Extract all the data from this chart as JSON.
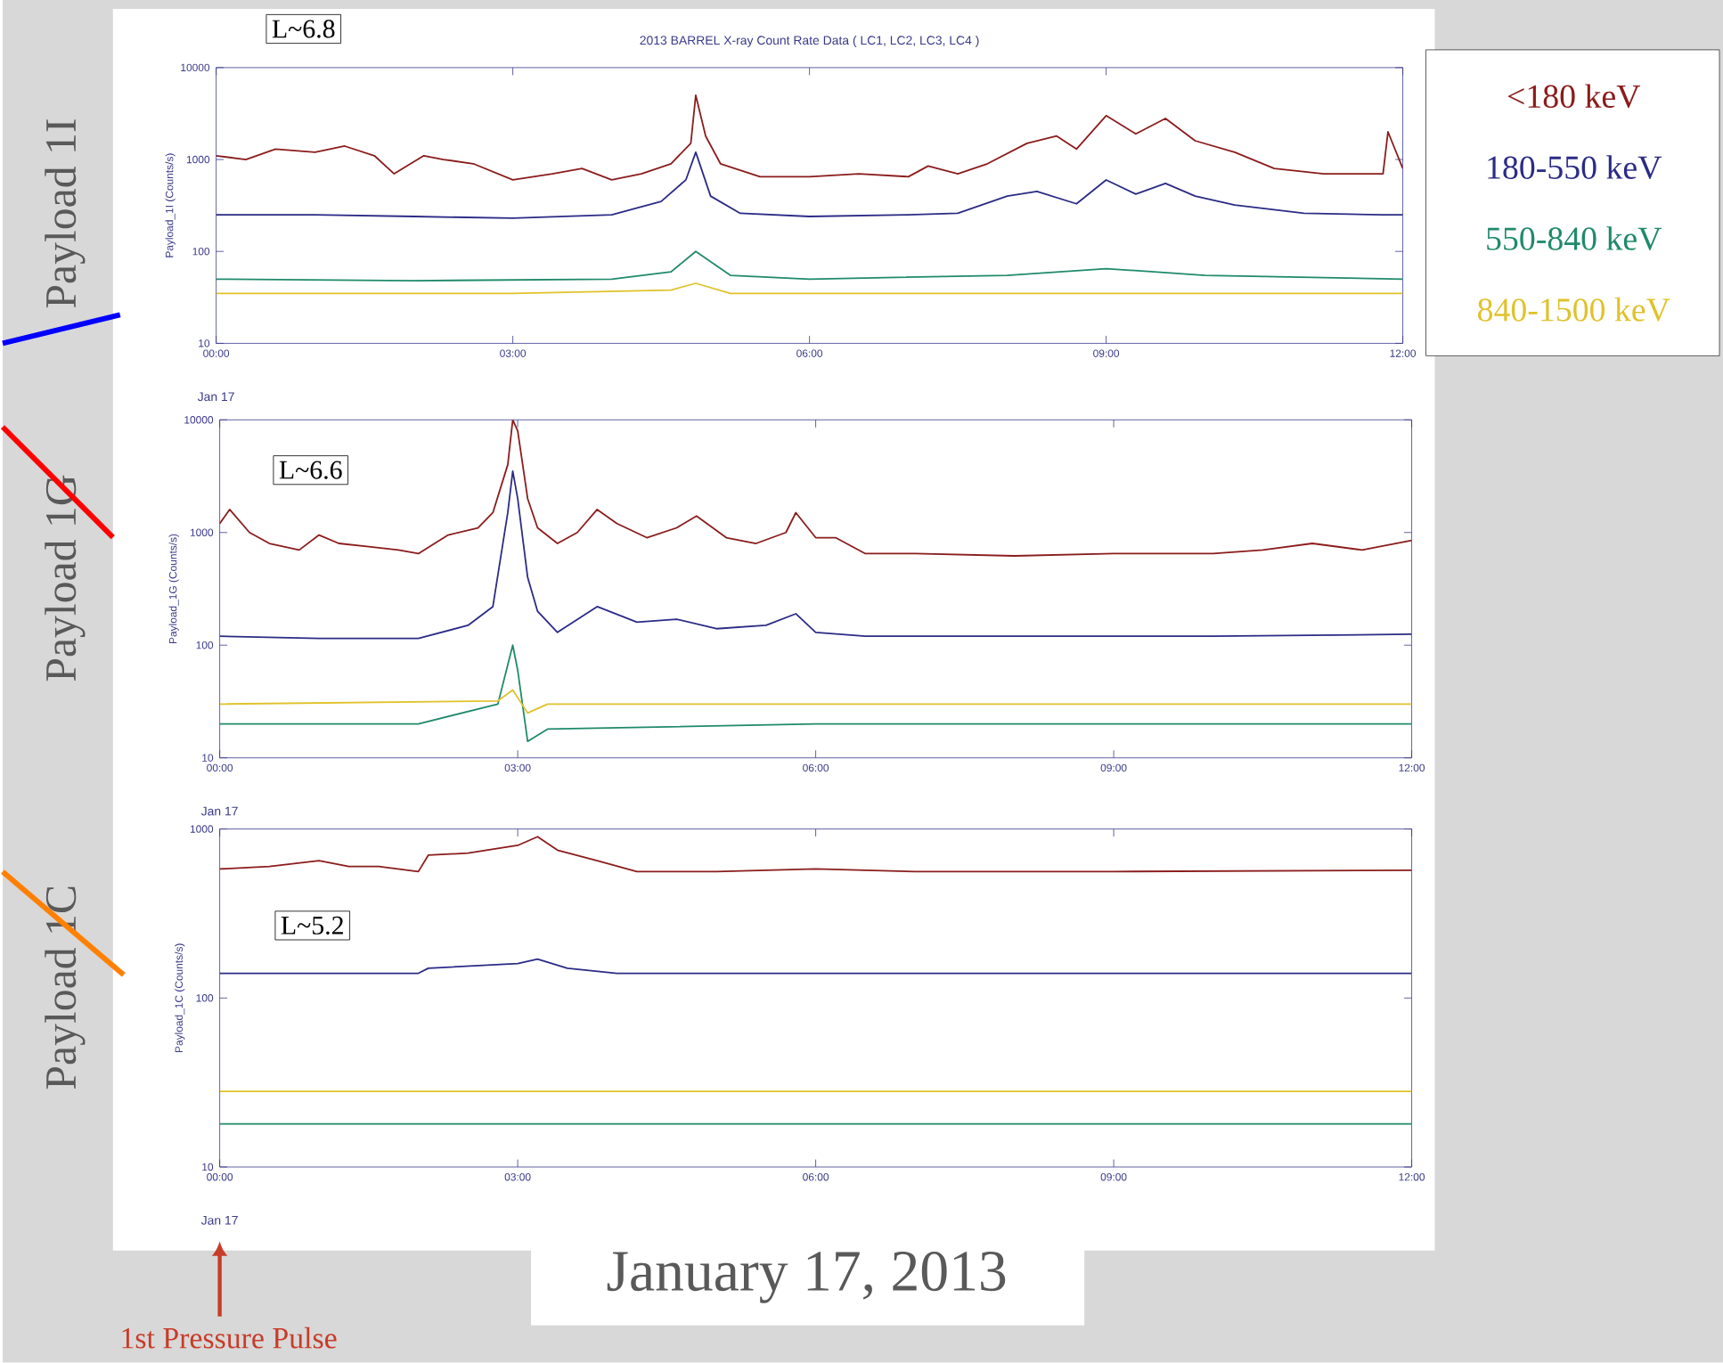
{
  "chart_data": [
    {
      "type": "line",
      "title": "2013 BARREL X-ray Count Rate Data      ( LC1, LC2, LC3, LC4 )",
      "ylabel": "Payload_1I (Counts/s)",
      "log": true,
      "legend": "right",
      "xlim": [
        0,
        12
      ],
      "xticks": [
        {
          "value": 0,
          "label": "00:00"
        },
        {
          "value": 3,
          "label": "03:00"
        },
        {
          "value": 6,
          "label": "06:00"
        },
        {
          "value": 9,
          "label": "09:00"
        },
        {
          "value": 12,
          "label": "12:00"
        }
      ],
      "ylim": [
        10,
        10000
      ],
      "yticks": [
        10,
        100,
        1000,
        10000
      ],
      "annotations": [
        "L~6.8",
        "Payload 1I",
        "Jan 17"
      ],
      "series": [
        {
          "name": "<180 keV",
          "color": "#8b1c1c",
          "x": [
            0,
            0.3,
            0.6,
            1.0,
            1.3,
            1.6,
            1.8,
            2.1,
            2.3,
            2.6,
            3.0,
            3.4,
            3.7,
            4.0,
            4.3,
            4.6,
            4.8,
            4.85,
            4.95,
            5.1,
            5.5,
            6.0,
            6.5,
            7.0,
            7.2,
            7.5,
            7.8,
            8.2,
            8.5,
            8.7,
            9.0,
            9.3,
            9.6,
            9.9,
            10.3,
            10.7,
            11.2,
            11.6,
            11.8,
            11.85,
            12.0
          ],
          "values": [
            1100,
            1000,
            1300,
            1200,
            1400,
            1100,
            700,
            1100,
            1000,
            900,
            600,
            700,
            800,
            600,
            700,
            900,
            1500,
            5000,
            1800,
            900,
            650,
            650,
            700,
            650,
            850,
            700,
            900,
            1500,
            1800,
            1300,
            3000,
            1900,
            2800,
            1600,
            1200,
            800,
            700,
            700,
            700,
            2000,
            800
          ]
        },
        {
          "name": "180-550 keV",
          "color": "#2b2b86",
          "x": [
            0,
            1,
            2,
            3,
            4,
            4.5,
            4.75,
            4.85,
            5.0,
            5.3,
            6,
            7,
            7.5,
            8.0,
            8.3,
            8.7,
            9.0,
            9.3,
            9.6,
            9.9,
            10.3,
            11,
            11.8,
            12
          ],
          "values": [
            250,
            250,
            240,
            230,
            250,
            350,
            600,
            1200,
            400,
            260,
            240,
            250,
            260,
            400,
            450,
            330,
            600,
            420,
            550,
            400,
            320,
            260,
            250,
            250
          ]
        },
        {
          "name": "550-840 keV",
          "color": "#1f8a6a",
          "x": [
            0,
            2,
            4,
            4.6,
            4.85,
            5.2,
            6,
            8,
            9,
            10,
            12
          ],
          "values": [
            50,
            48,
            50,
            60,
            100,
            55,
            50,
            55,
            65,
            55,
            50
          ]
        },
        {
          "name": "840-1500 keV",
          "color": "#e0c22a",
          "x": [
            0,
            3,
            4.6,
            4.85,
            5.2,
            8,
            12
          ],
          "values": [
            35,
            35,
            38,
            45,
            35,
            35,
            35
          ]
        }
      ]
    },
    {
      "type": "line",
      "ylabel": "Payload_1G (Counts/s)",
      "log": true,
      "xlim": [
        0,
        12
      ],
      "xticks": [
        {
          "value": 0,
          "label": "00:00"
        },
        {
          "value": 3,
          "label": "03:00"
        },
        {
          "value": 6,
          "label": "06:00"
        },
        {
          "value": 9,
          "label": "09:00"
        },
        {
          "value": 12,
          "label": "12:00"
        }
      ],
      "ylim": [
        10,
        10000
      ],
      "yticks": [
        10,
        100,
        1000,
        10000
      ],
      "annotations": [
        "L~6.6",
        "Payload 1G",
        "Jan 17"
      ],
      "series": [
        {
          "color": "#8b1c1c",
          "x": [
            0,
            0.1,
            0.3,
            0.5,
            0.8,
            1.0,
            1.2,
            1.5,
            1.8,
            2.0,
            2.3,
            2.6,
            2.75,
            2.9,
            2.95,
            3.0,
            3.1,
            3.2,
            3.4,
            3.6,
            3.8,
            4.0,
            4.3,
            4.6,
            4.8,
            5.1,
            5.4,
            5.7,
            5.8,
            6.0,
            6.2,
            6.5,
            7,
            8,
            9,
            10,
            10.5,
            11,
            11.5,
            12
          ],
          "values": [
            1200,
            1600,
            1000,
            800,
            700,
            950,
            800,
            750,
            700,
            650,
            950,
            1100,
            1500,
            4000,
            10000,
            8000,
            2000,
            1100,
            800,
            1000,
            1600,
            1200,
            900,
            1100,
            1400,
            900,
            800,
            1000,
            1500,
            900,
            900,
            650,
            650,
            620,
            650,
            650,
            700,
            800,
            700,
            850
          ]
        },
        {
          "color": "#2b2b86",
          "x": [
            0,
            1,
            2,
            2.5,
            2.75,
            2.9,
            2.95,
            3.0,
            3.1,
            3.2,
            3.4,
            3.8,
            4.2,
            4.6,
            5.0,
            5.5,
            5.8,
            6.0,
            6.5,
            8,
            10,
            12
          ],
          "values": [
            120,
            115,
            115,
            150,
            220,
            1500,
            3500,
            2000,
            400,
            200,
            130,
            220,
            160,
            170,
            140,
            150,
            190,
            130,
            120,
            120,
            120,
            125
          ]
        },
        {
          "color": "#1f8a6a",
          "x": [
            0,
            2,
            2.8,
            2.95,
            3.0,
            3.1,
            3.3,
            6,
            9,
            12
          ],
          "values": [
            20,
            20,
            30,
            100,
            60,
            14,
            18,
            20,
            20,
            20
          ]
        },
        {
          "color": "#e0c22a",
          "x": [
            0,
            2.8,
            2.95,
            3.1,
            3.3,
            12
          ],
          "values": [
            30,
            32,
            40,
            25,
            30,
            30
          ]
        }
      ]
    },
    {
      "type": "line",
      "ylabel": "Payload_1C (Counts/s)",
      "log": true,
      "xlim": [
        0,
        12
      ],
      "xticks": [
        {
          "value": 0,
          "label": "00:00"
        },
        {
          "value": 3,
          "label": "03:00"
        },
        {
          "value": 6,
          "label": "06:00"
        },
        {
          "value": 9,
          "label": "09:00"
        },
        {
          "value": 12,
          "label": "12:00"
        }
      ],
      "ylim": [
        10,
        1000
      ],
      "yticks": [
        10,
        100,
        1000
      ],
      "annotations": [
        "L~5.2",
        "Payload 1C",
        "Jan 17",
        "January 17, 2013",
        "1st Pressure Pulse"
      ],
      "series": [
        {
          "color": "#8b1c1c",
          "x": [
            0,
            0.5,
            1.0,
            1.3,
            1.6,
            2.0,
            2.1,
            2.5,
            3.0,
            3.2,
            3.4,
            3.8,
            4.2,
            5,
            6.0,
            7,
            9,
            12
          ],
          "values": [
            580,
            600,
            650,
            600,
            600,
            560,
            700,
            720,
            800,
            900,
            750,
            650,
            560,
            560,
            580,
            560,
            560,
            570
          ]
        },
        {
          "color": "#2b2b86",
          "x": [
            0,
            2,
            2.1,
            3,
            3.2,
            3.5,
            4,
            6,
            12
          ],
          "values": [
            140,
            140,
            150,
            160,
            170,
            150,
            140,
            140,
            140
          ]
        },
        {
          "color": "#1f8a6a",
          "x": [
            0,
            3,
            6,
            9,
            12
          ],
          "values": [
            18,
            18,
            18,
            18,
            18
          ]
        },
        {
          "color": "#e0c22a",
          "x": [
            0,
            3,
            6,
            9,
            12
          ],
          "values": [
            28,
            28,
            28,
            28,
            28
          ]
        }
      ]
    }
  ]
}
